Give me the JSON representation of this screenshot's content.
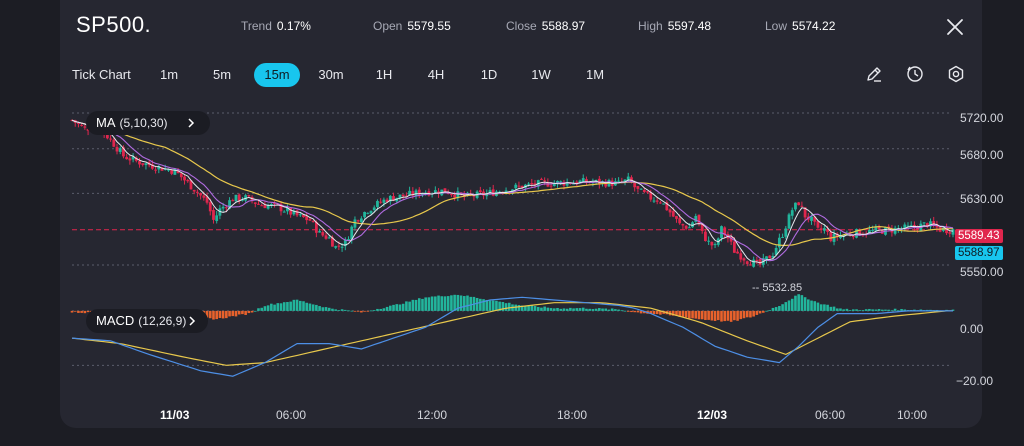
{
  "header": {
    "symbol": "SP500.",
    "stats": [
      {
        "label": "Trend",
        "value": "0.17%"
      },
      {
        "label": "Open",
        "value": "5579.55"
      },
      {
        "label": "Close",
        "value": "5588.97"
      },
      {
        "label": "High",
        "value": "5597.48"
      },
      {
        "label": "Low",
        "value": "5574.22"
      }
    ]
  },
  "toolbar": {
    "tick_label": "Tick Chart",
    "timeframes": [
      "1m",
      "5m",
      "15m",
      "30m",
      "1H",
      "4H",
      "1D",
      "1W",
      "1M"
    ],
    "active_timeframe": "15m"
  },
  "colors": {
    "up": "#22b59c",
    "down": "#e0264d",
    "accent": "#18c6ee",
    "ma5": "#e7e8ee",
    "ma10": "#b06be0",
    "ma30": "#e8c84c",
    "macd_dif": "#4d8fe6",
    "macd_dea": "#e8c84c"
  },
  "price_panel": {
    "indicator_name": "MA",
    "indicator_params": "(5,10,30)",
    "y_ticks": [
      "5720.00",
      "5680.00",
      "5630.00",
      "5550.00"
    ],
    "last_price": "5589.43",
    "close_price": "5588.97",
    "low_marker": "5532.85"
  },
  "macd_panel": {
    "indicator_name": "MACD",
    "indicator_params": "(12,26,9)",
    "y_ticks": [
      "0.00",
      "−20.00"
    ]
  },
  "x_axis": {
    "labels": [
      "11/03",
      "06:00",
      "12:00",
      "18:00",
      "12/03",
      "06:00",
      "10:00"
    ],
    "bold": [
      true,
      false,
      false,
      false,
      true,
      false,
      false
    ]
  },
  "chart_data": {
    "type": "candlestick",
    "interval": "15m",
    "y_ticks": [
      5720,
      5680,
      5630,
      5550
    ],
    "current_price": 5589.43,
    "close": 5588.97,
    "low_marker": 5532.85,
    "y_range": [
      5522,
      5730
    ],
    "price_path": [
      [
        0,
        5712
      ],
      [
        4,
        5702
      ],
      [
        8,
        5706
      ],
      [
        12,
        5690
      ],
      [
        16,
        5672
      ],
      [
        20,
        5666
      ],
      [
        26,
        5660
      ],
      [
        32,
        5655
      ],
      [
        38,
        5635
      ],
      [
        42,
        5620
      ],
      [
        44,
        5600
      ],
      [
        46,
        5612
      ],
      [
        50,
        5624
      ],
      [
        54,
        5625
      ],
      [
        58,
        5618
      ],
      [
        64,
        5615
      ],
      [
        70,
        5605
      ],
      [
        74,
        5600
      ],
      [
        77,
        5585
      ],
      [
        80,
        5580
      ],
      [
        82,
        5570
      ],
      [
        85,
        5575
      ],
      [
        88,
        5600
      ],
      [
        92,
        5612
      ],
      [
        98,
        5624
      ],
      [
        104,
        5628
      ],
      [
        110,
        5632
      ],
      [
        116,
        5633
      ],
      [
        122,
        5626
      ],
      [
        128,
        5629
      ],
      [
        134,
        5634
      ],
      [
        140,
        5638
      ],
      [
        146,
        5641
      ],
      [
        152,
        5642
      ],
      [
        158,
        5643
      ],
      [
        166,
        5642
      ],
      [
        170,
        5641
      ],
      [
        173,
        5645
      ],
      [
        176,
        5633
      ],
      [
        180,
        5625
      ],
      [
        183,
        5622
      ],
      [
        186,
        5609
      ],
      [
        189,
        5595
      ],
      [
        192,
        5592
      ],
      [
        194,
        5605
      ],
      [
        196,
        5585
      ],
      [
        198,
        5575
      ],
      [
        200,
        5570
      ],
      [
        202,
        5590
      ],
      [
        204,
        5580
      ],
      [
        206,
        5566
      ],
      [
        210,
        5555
      ],
      [
        214,
        5550
      ],
      [
        218,
        5563
      ],
      [
        221,
        5585
      ],
      [
        224,
        5612
      ],
      [
        226,
        5620
      ],
      [
        228,
        5605
      ],
      [
        230,
        5600
      ],
      [
        232,
        5588
      ],
      [
        234,
        5590
      ],
      [
        236,
        5580
      ],
      [
        240,
        5584
      ],
      [
        244,
        5586
      ],
      [
        250,
        5588
      ],
      [
        256,
        5590
      ],
      [
        262,
        5592
      ],
      [
        266,
        5596
      ],
      [
        270,
        5590
      ],
      [
        274,
        5589
      ]
    ],
    "macd_y_ticks": [
      0,
      -20
    ],
    "macd_y_range": [
      -32,
      4
    ],
    "macd_dif": [
      [
        0,
        -10
      ],
      [
        12,
        -11
      ],
      [
        24,
        -16
      ],
      [
        40,
        -22
      ],
      [
        50,
        -24
      ],
      [
        60,
        -19
      ],
      [
        70,
        -12
      ],
      [
        80,
        -12
      ],
      [
        90,
        -14
      ],
      [
        100,
        -10
      ],
      [
        110,
        -6
      ],
      [
        120,
        1
      ],
      [
        130,
        4
      ],
      [
        140,
        5
      ],
      [
        150,
        4
      ],
      [
        160,
        3
      ],
      [
        170,
        2
      ],
      [
        175,
        1
      ],
      [
        180,
        -1
      ],
      [
        190,
        -6
      ],
      [
        200,
        -13
      ],
      [
        210,
        -17
      ],
      [
        220,
        -19
      ],
      [
        226,
        -13
      ],
      [
        232,
        -6
      ],
      [
        238,
        -1
      ],
      [
        250,
        -1
      ],
      [
        260,
        0
      ],
      [
        272,
        0
      ]
    ],
    "macd_dea": [
      [
        0,
        -10
      ],
      [
        15,
        -12
      ],
      [
        35,
        -17
      ],
      [
        48,
        -20
      ],
      [
        60,
        -19
      ],
      [
        75,
        -15
      ],
      [
        90,
        -11
      ],
      [
        105,
        -7
      ],
      [
        120,
        -3
      ],
      [
        135,
        1
      ],
      [
        150,
        3
      ],
      [
        165,
        3
      ],
      [
        180,
        1
      ],
      [
        195,
        -4
      ],
      [
        210,
        -11
      ],
      [
        222,
        -16
      ],
      [
        232,
        -10
      ],
      [
        242,
        -4
      ],
      [
        255,
        -2
      ],
      [
        272,
        0
      ]
    ],
    "macd_hist": [
      [
        0,
        -0.5
      ],
      [
        30,
        -1.5
      ],
      [
        45,
        -3
      ],
      [
        55,
        -1
      ],
      [
        60,
        2
      ],
      [
        70,
        4
      ],
      [
        80,
        1
      ],
      [
        90,
        -0.5
      ],
      [
        100,
        2
      ],
      [
        110,
        5
      ],
      [
        120,
        6
      ],
      [
        130,
        4
      ],
      [
        140,
        2
      ],
      [
        150,
        1
      ],
      [
        160,
        1
      ],
      [
        170,
        0.5
      ],
      [
        175,
        -0.5
      ],
      [
        185,
        -1.5
      ],
      [
        195,
        -3
      ],
      [
        205,
        -4
      ],
      [
        212,
        -2
      ],
      [
        220,
        2
      ],
      [
        226,
        6
      ],
      [
        232,
        3
      ],
      [
        240,
        0.5
      ],
      [
        260,
        0.5
      ],
      [
        272,
        0.3
      ]
    ]
  }
}
